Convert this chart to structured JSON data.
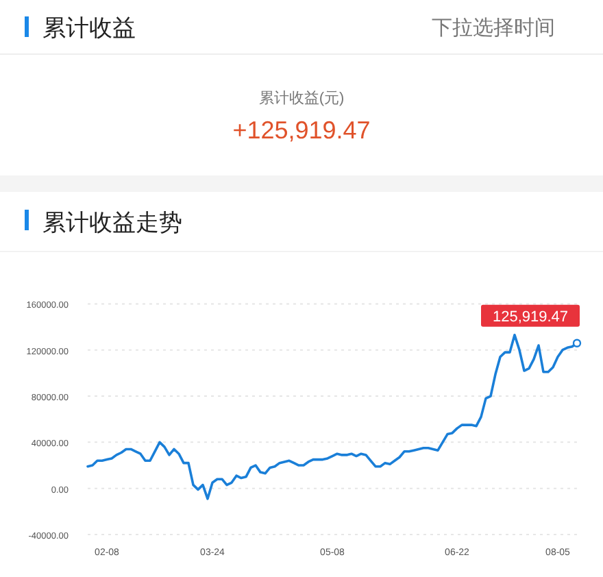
{
  "chart_data": {
    "type": "line",
    "title": "累计收益走势",
    "annotations": [
      "累计收益",
      "下拉选择时间",
      "累计收益(元)",
      "+125,919.47",
      "125,919.47"
    ],
    "categories": [
      null,
      null,
      null,
      null,
      "02-08",
      null,
      null,
      null,
      null,
      null,
      null,
      null,
      null,
      null,
      null,
      null,
      null,
      null,
      null,
      null,
      null,
      null,
      null,
      null,
      null,
      null,
      "03-24",
      null,
      null,
      null,
      null,
      null,
      null,
      null,
      null,
      null,
      null,
      null,
      null,
      null,
      null,
      null,
      null,
      null,
      null,
      null,
      null,
      null,
      null,
      null,
      null,
      "05-08",
      null,
      null,
      null,
      null,
      null,
      null,
      null,
      null,
      null,
      null,
      null,
      null,
      null,
      null,
      null,
      null,
      null,
      null,
      null,
      null,
      null,
      null,
      null,
      null,
      null,
      "06-22",
      null,
      null,
      null,
      null,
      null,
      null,
      null,
      null,
      null,
      null,
      null,
      null,
      null,
      null,
      null,
      null,
      null,
      null,
      null,
      null,
      "08-05",
      null,
      null,
      null,
      null
    ],
    "series": [
      {
        "color": "#1a7fd8",
        "values": [
          19000,
          20000,
          24000,
          24000,
          25000,
          26000,
          29000,
          31000,
          34000,
          34000,
          32000,
          30000,
          24000,
          24000,
          32000,
          40000,
          36000,
          29000,
          34000,
          30000,
          22000,
          22000,
          3000,
          -1000,
          3000,
          -9000,
          5000,
          8000,
          8000,
          3000,
          5000,
          11000,
          9000,
          10000,
          18000,
          20000,
          14000,
          13000,
          18000,
          19000,
          22000,
          23000,
          24000,
          22000,
          20000,
          20000,
          23000,
          25000,
          25000,
          25000,
          26000,
          28000,
          30000,
          29000,
          29000,
          30000,
          28000,
          30000,
          29000,
          24000,
          19000,
          19000,
          22000,
          21000,
          24000,
          27000,
          32000,
          32000,
          33000,
          34000,
          35000,
          35000,
          34000,
          33000,
          40000,
          47000,
          48000,
          52000,
          55000,
          55000,
          55000,
          54000,
          62000,
          78000,
          80000,
          99000,
          114000,
          118000,
          118000,
          133000,
          120000,
          102000,
          104000,
          112000,
          124000,
          101000,
          101000,
          105000,
          114000,
          120000,
          122000,
          123000,
          125919.47
        ]
      }
    ],
    "ylim": [
      -40000,
      160000
    ],
    "yticks": [
      {
        "value": -40000,
        "label": "-40000.00"
      },
      {
        "value": 0,
        "label": "0.00"
      },
      {
        "value": 40000,
        "label": "40000.00"
      },
      {
        "value": 80000,
        "label": "80000.00"
      },
      {
        "value": 120000,
        "label": "120000.00"
      },
      {
        "value": 160000,
        "label": "160000.00"
      }
    ],
    "grid": "y",
    "line_style": "solid"
  }
}
